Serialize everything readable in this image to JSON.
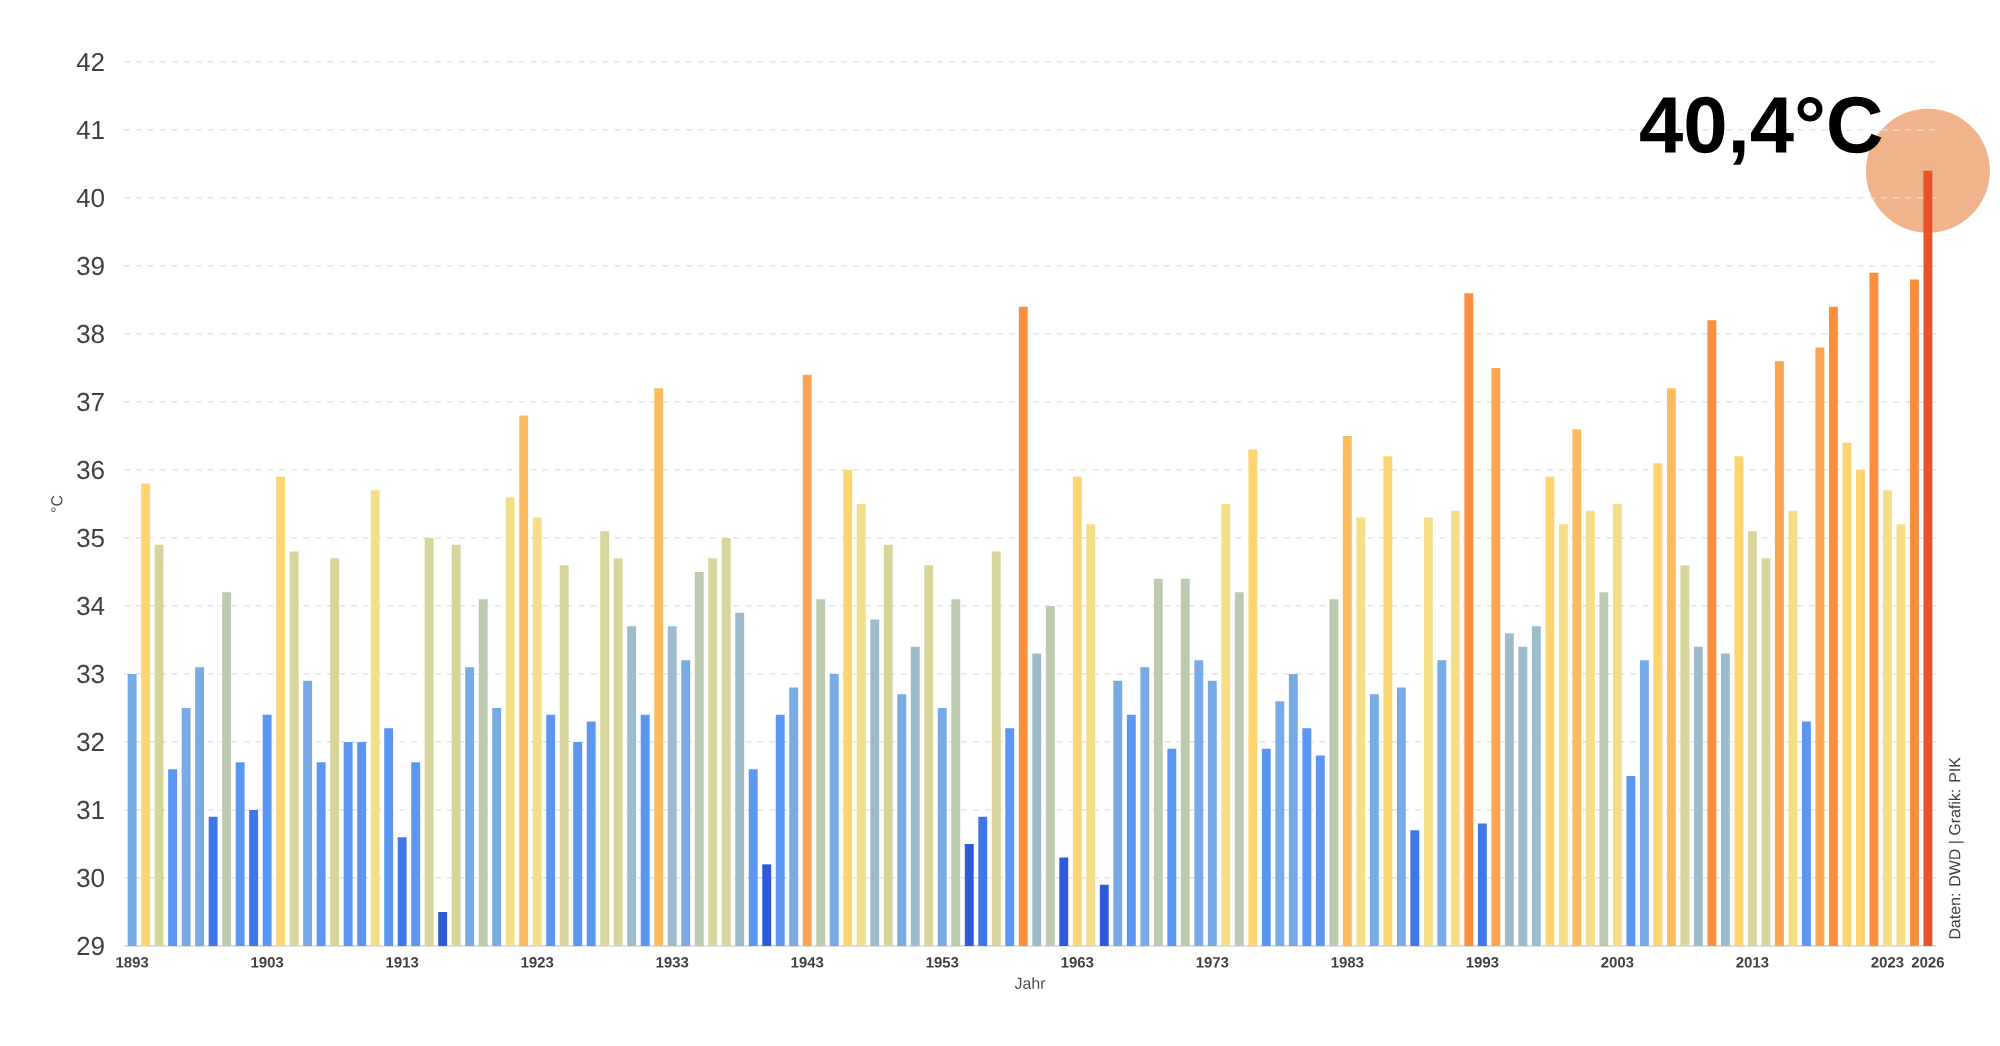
{
  "chart_data": {
    "type": "bar",
    "xlabel": "Jahr",
    "ylabel": "°C",
    "categories": [
      "1893",
      null,
      null,
      null,
      null,
      null,
      null,
      null,
      null,
      null,
      "1903",
      null,
      null,
      null,
      null,
      null,
      null,
      null,
      null,
      null,
      "1913",
      null,
      null,
      null,
      null,
      null,
      null,
      null,
      null,
      null,
      "1923",
      null,
      null,
      null,
      null,
      null,
      null,
      null,
      null,
      null,
      "1933",
      null,
      null,
      null,
      null,
      null,
      null,
      null,
      null,
      null,
      "1943",
      null,
      null,
      null,
      null,
      null,
      null,
      null,
      null,
      null,
      "1953",
      null,
      null,
      null,
      null,
      null,
      null,
      null,
      null,
      null,
      "1963",
      null,
      null,
      null,
      null,
      null,
      null,
      null,
      null,
      null,
      "1973",
      null,
      null,
      null,
      null,
      null,
      null,
      null,
      null,
      null,
      "1983",
      null,
      null,
      null,
      null,
      null,
      null,
      null,
      null,
      null,
      "1993",
      null,
      null,
      null,
      null,
      null,
      null,
      null,
      null,
      null,
      "2003",
      null,
      null,
      null,
      null,
      null,
      null,
      null,
      null,
      null,
      "2013",
      null,
      null,
      null,
      null,
      null,
      null,
      null,
      null,
      null,
      "2023",
      null,
      null,
      "2026"
    ],
    "values": [
      33.0,
      35.8,
      34.9,
      31.6,
      32.5,
      33.1,
      30.9,
      34.2,
      31.7,
      31.0,
      32.4,
      35.9,
      34.8,
      32.9,
      31.7,
      34.7,
      32.0,
      32.0,
      35.7,
      32.2,
      30.6,
      31.7,
      35.0,
      29.5,
      34.9,
      33.1,
      34.1,
      32.5,
      35.6,
      36.8,
      35.3,
      32.4,
      34.6,
      32.0,
      32.3,
      35.1,
      34.7,
      33.7,
      32.4,
      37.2,
      33.7,
      33.2,
      34.5,
      34.7,
      35.0,
      33.9,
      31.6,
      30.2,
      32.4,
      32.8,
      37.4,
      34.1,
      33.0,
      36.0,
      35.5,
      33.8,
      34.9,
      32.7,
      33.4,
      34.6,
      32.5,
      34.1,
      30.5,
      30.9,
      34.8,
      32.2,
      38.4,
      33.3,
      34.0,
      30.3,
      35.9,
      35.2,
      29.9,
      32.9,
      32.4,
      33.1,
      34.4,
      31.9,
      34.4,
      33.2,
      32.9,
      35.5,
      34.2,
      36.3,
      31.9,
      32.6,
      33.0,
      32.2,
      31.8,
      34.1,
      36.5,
      35.3,
      32.7,
      36.2,
      32.8,
      30.7,
      35.3,
      33.2,
      35.4,
      38.6,
      30.8,
      37.5,
      33.6,
      33.4,
      33.7,
      35.9,
      35.2,
      36.6,
      35.4,
      34.2,
      35.5,
      31.5,
      33.2,
      36.1,
      37.2,
      34.6,
      33.4,
      38.2,
      33.3,
      36.2,
      35.1,
      34.7,
      37.6,
      35.4,
      32.3,
      37.8,
      38.4,
      36.4,
      36.0,
      38.9,
      35.7,
      35.2,
      38.8,
      40.4
    ],
    "colors": [
      "#78aae4",
      "#fdd470",
      "#d8d59c",
      "#5b97f2",
      "#78aae4",
      "#78aae4",
      "#3f77ea",
      "#bccbb0",
      "#5b97f2",
      "#3f77ea",
      "#5b97f2",
      "#fdd470",
      "#d8d59c",
      "#78aae4",
      "#5b97f2",
      "#d8d59c",
      "#5b97f2",
      "#5b97f2",
      "#f5de88",
      "#5b97f2",
      "#3f77ea",
      "#5b97f2",
      "#d8d59c",
      "#2c5ad8",
      "#d8d59c",
      "#78aae4",
      "#bccbb0",
      "#78aae4",
      "#f5de88",
      "#fcbb5e",
      "#f5de88",
      "#5b97f2",
      "#d8d59c",
      "#5b97f2",
      "#5b97f2",
      "#d8d59c",
      "#d8d59c",
      "#9cbccc",
      "#5b97f2",
      "#fcbb5e",
      "#9cbccc",
      "#78aae4",
      "#bccbb0",
      "#d8d59c",
      "#d8d59c",
      "#9cbccc",
      "#5b97f2",
      "#2c5ad8",
      "#5b97f2",
      "#78aae4",
      "#fba552",
      "#bccbb0",
      "#78aae4",
      "#fdd470",
      "#f5de88",
      "#9cbccc",
      "#d8d59c",
      "#78aae4",
      "#9cbccc",
      "#d8d59c",
      "#78aae4",
      "#bccbb0",
      "#2c5ad8",
      "#3f77ea",
      "#d8d59c",
      "#5b97f2",
      "#fb8f3e",
      "#9cbccc",
      "#bccbb0",
      "#2c5ad8",
      "#fdd470",
      "#f5de88",
      "#2c5ad8",
      "#78aae4",
      "#5b97f2",
      "#78aae4",
      "#bccbb0",
      "#5b97f2",
      "#bccbb0",
      "#78aae4",
      "#78aae4",
      "#f5de88",
      "#bccbb0",
      "#fdd470",
      "#5b97f2",
      "#78aae4",
      "#78aae4",
      "#5b97f2",
      "#5b97f2",
      "#bccbb0",
      "#fcbb5e",
      "#f5de88",
      "#78aae4",
      "#fdd470",
      "#78aae4",
      "#3f77ea",
      "#f5de88",
      "#78aae4",
      "#f5de88",
      "#fb8f3e",
      "#3f77ea",
      "#fba552",
      "#9cbccc",
      "#9cbccc",
      "#9cbccc",
      "#fdd470",
      "#f5de88",
      "#fcbb5e",
      "#f5de88",
      "#bccbb0",
      "#f5de88",
      "#5b97f2",
      "#78aae4",
      "#fdd470",
      "#fcbb5e",
      "#d8d59c",
      "#9cbccc",
      "#fb8f3e",
      "#9cbccc",
      "#fdd470",
      "#d8d59c",
      "#d8d59c",
      "#fba552",
      "#f5de88",
      "#5b97f2",
      "#fba552",
      "#fb8f3e",
      "#fdd470",
      "#fdd470",
      "#fb8f3e",
      "#f5de88",
      "#f5de88",
      "#fb8f3e",
      "#e8532c"
    ],
    "ylim": [
      29,
      42
    ],
    "yticks": [
      29,
      30,
      31,
      32,
      33,
      34,
      35,
      36,
      37,
      38,
      39,
      40,
      41,
      42
    ],
    "grid": "y",
    "annotations": [
      {
        "text": "40,4°C",
        "x": "2026",
        "y": 40.4
      },
      "Daten: DWD | Grafik: PIK"
    ]
  }
}
